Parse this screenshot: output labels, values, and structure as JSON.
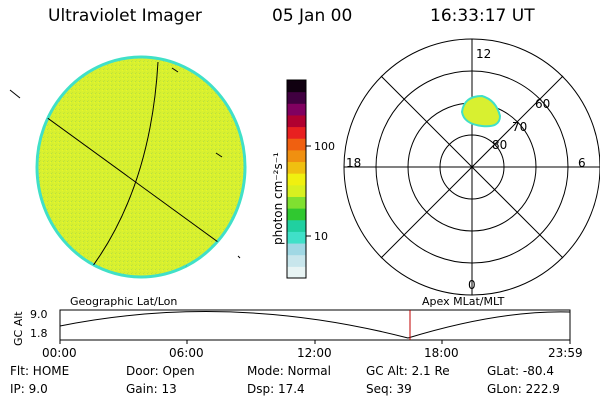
{
  "header": {
    "instrument": "Ultraviolet Imager",
    "date": "05 Jan 00",
    "time": "16:33:17 UT"
  },
  "colorbar": {
    "unit_label": "photon cm⁻²s⁻¹",
    "ticks": [
      "100",
      "10"
    ],
    "colors": [
      "#e8f4f4",
      "#c8e6ec",
      "#a0d8e4",
      "#40e0c8",
      "#20d0a0",
      "#30c830",
      "#80e030",
      "#d8f020",
      "#f0f010",
      "#f0c010",
      "#f09010",
      "#f06010",
      "#e82020",
      "#b00030",
      "#800060",
      "#400040",
      "#100010"
    ]
  },
  "geo_image": {
    "fill_color": "#d8f030",
    "edge_color": "#40e0c8"
  },
  "polar_plot": {
    "lat_labels": [
      "80",
      "70",
      "60"
    ],
    "mlt_labels": {
      "top": "12",
      "left": "18",
      "right": "6",
      "bottom": "0"
    },
    "aurora_color": "#d8f030",
    "aurora_edge": "#40e0c8"
  },
  "timeline": {
    "left_label": "Geographic Lat/Lon",
    "right_label": "Apex MLat/MLT",
    "axis_title": "GC Alt",
    "y_ticks": [
      "9.0",
      "1.8"
    ],
    "x_ticks": [
      "00:00",
      "06:00",
      "12:00",
      "18:00",
      "23:59"
    ],
    "marker_color": "#c00000"
  },
  "info": {
    "flt": "Flt: HOME",
    "ip": "IP:  9.0",
    "door": "Door: Open",
    "gain": "Gain: 13",
    "mode": "Mode: Normal",
    "dsp": "Dsp:   17.4",
    "gc_alt": "GC Alt: 2.1 Re",
    "seq": "Seq: 39",
    "glat": "GLat: -80.4",
    "glon": "GLon: 222.9"
  }
}
